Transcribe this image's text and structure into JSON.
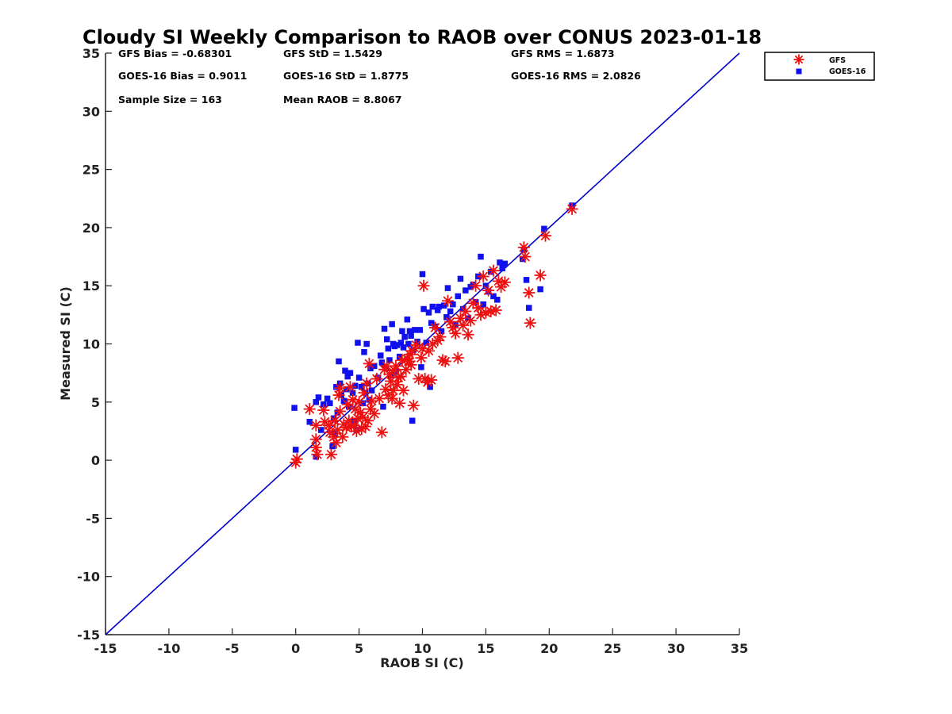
{
  "chart_data": {
    "type": "scatter",
    "title": "Cloudy SI Weekly Comparison to RAOB over CONUS 2023-01-18",
    "xlabel": "RAOB SI (C)",
    "ylabel": "Measured SI (C)",
    "xlim": [
      -15,
      35
    ],
    "ylim": [
      -15,
      35
    ],
    "xticks": [
      -15,
      -10,
      -5,
      0,
      5,
      10,
      15,
      20,
      25,
      30,
      35
    ],
    "yticks": [
      -15,
      -10,
      -5,
      0,
      5,
      10,
      15,
      20,
      25,
      30,
      35
    ],
    "grid": false,
    "legend_position": "top-right-outside",
    "reference_line": {
      "from": [
        -15,
        -15
      ],
      "to": [
        35,
        35
      ],
      "color": "#0000cc"
    },
    "stats": [
      "GFS Bias = -0.68301",
      "GFS StD = 1.5429",
      "GFS RMS = 1.6873",
      "GOES-16 Bias = 0.9011",
      "GOES-16 StD = 1.8775",
      "GOES-16 RMS = 2.0826",
      "Sample Size = 163",
      "Mean RAOB = 8.8067"
    ],
    "series": [
      {
        "name": "GFS",
        "marker": "asterisk",
        "color": "#ee1111",
        "points": [
          [
            0.0,
            -0.2
          ],
          [
            0.1,
            0.1
          ],
          [
            1.1,
            4.4
          ],
          [
            1.6,
            3.0
          ],
          [
            1.6,
            1.8
          ],
          [
            1.6,
            1.1
          ],
          [
            1.7,
            0.5
          ],
          [
            2.2,
            4.3
          ],
          [
            2.3,
            3.3
          ],
          [
            2.6,
            3.0
          ],
          [
            2.7,
            2.4
          ],
          [
            2.8,
            0.5
          ],
          [
            3.0,
            2.0
          ],
          [
            3.1,
            3.4
          ],
          [
            3.2,
            1.5
          ],
          [
            3.3,
            2.6
          ],
          [
            3.4,
            5.6
          ],
          [
            3.5,
            4.2
          ],
          [
            3.5,
            6.2
          ],
          [
            3.7,
            2.0
          ],
          [
            3.8,
            3.1
          ],
          [
            4.0,
            2.8
          ],
          [
            4.1,
            4.8
          ],
          [
            4.2,
            3.4
          ],
          [
            4.3,
            6.3
          ],
          [
            4.4,
            2.9
          ],
          [
            4.5,
            5.2
          ],
          [
            4.6,
            3.0
          ],
          [
            4.7,
            4.4
          ],
          [
            4.8,
            2.5
          ],
          [
            4.9,
            3.6
          ],
          [
            5.0,
            5.0
          ],
          [
            5.1,
            4.1
          ],
          [
            5.2,
            2.7
          ],
          [
            5.3,
            3.7
          ],
          [
            5.4,
            5.8
          ],
          [
            5.5,
            2.9
          ],
          [
            5.6,
            6.6
          ],
          [
            5.7,
            3.4
          ],
          [
            5.8,
            8.3
          ],
          [
            5.9,
            4.4
          ],
          [
            6.0,
            5.1
          ],
          [
            6.2,
            4.0
          ],
          [
            6.4,
            7.0
          ],
          [
            6.6,
            5.3
          ],
          [
            6.8,
            2.4
          ],
          [
            7.0,
            7.8
          ],
          [
            7.1,
            6.1
          ],
          [
            7.2,
            8.1
          ],
          [
            7.3,
            5.6
          ],
          [
            7.4,
            7.4
          ],
          [
            7.5,
            6.8
          ],
          [
            7.6,
            5.3
          ],
          [
            7.7,
            6.0
          ],
          [
            7.8,
            7.7
          ],
          [
            7.9,
            8.1
          ],
          [
            8.0,
            6.5
          ],
          [
            8.1,
            7.1
          ],
          [
            8.2,
            4.9
          ],
          [
            8.3,
            7.2
          ],
          [
            8.4,
            8.6
          ],
          [
            8.5,
            6.0
          ],
          [
            8.7,
            7.8
          ],
          [
            8.8,
            8.7
          ],
          [
            8.9,
            8.5
          ],
          [
            9.0,
            9.1
          ],
          [
            9.1,
            8.2
          ],
          [
            9.2,
            9.4
          ],
          [
            9.3,
            4.7
          ],
          [
            9.5,
            9.9
          ],
          [
            9.7,
            7.0
          ],
          [
            9.9,
            8.8
          ],
          [
            10.0,
            9.6
          ],
          [
            10.1,
            15.0
          ],
          [
            10.2,
            7.0
          ],
          [
            10.4,
            6.7
          ],
          [
            10.5,
            9.4
          ],
          [
            10.7,
            6.9
          ],
          [
            10.8,
            10.0
          ],
          [
            11.0,
            11.4
          ],
          [
            11.2,
            10.3
          ],
          [
            11.4,
            10.6
          ],
          [
            11.6,
            8.6
          ],
          [
            11.8,
            8.5
          ],
          [
            12.0,
            13.7
          ],
          [
            12.2,
            11.9
          ],
          [
            12.4,
            11.4
          ],
          [
            12.6,
            10.9
          ],
          [
            12.8,
            8.8
          ],
          [
            13.0,
            12.2
          ],
          [
            13.2,
            11.6
          ],
          [
            13.4,
            12.8
          ],
          [
            13.6,
            10.8
          ],
          [
            13.8,
            12.0
          ],
          [
            14.0,
            13.5
          ],
          [
            14.2,
            15.0
          ],
          [
            14.4,
            13.1
          ],
          [
            14.6,
            12.5
          ],
          [
            14.8,
            15.8
          ],
          [
            15.0,
            12.7
          ],
          [
            15.2,
            14.6
          ],
          [
            15.4,
            12.8
          ],
          [
            15.6,
            16.3
          ],
          [
            15.8,
            12.9
          ],
          [
            16.0,
            15.4
          ],
          [
            16.2,
            14.9
          ],
          [
            16.5,
            15.3
          ],
          [
            18.0,
            18.3
          ],
          [
            18.1,
            17.5
          ],
          [
            18.4,
            14.4
          ],
          [
            18.5,
            11.8
          ],
          [
            19.3,
            15.9
          ],
          [
            19.7,
            19.3
          ],
          [
            21.8,
            21.6
          ]
        ]
      },
      {
        "name": "GOES-16",
        "marker": "square",
        "color": "#1010ee",
        "points": [
          [
            -0.1,
            4.5
          ],
          [
            0.0,
            0.9
          ],
          [
            1.1,
            3.3
          ],
          [
            1.6,
            5.0
          ],
          [
            1.6,
            0.3
          ],
          [
            1.8,
            5.4
          ],
          [
            2.0,
            2.6
          ],
          [
            2.2,
            4.8
          ],
          [
            2.5,
            5.3
          ],
          [
            2.7,
            4.9
          ],
          [
            2.9,
            1.2
          ],
          [
            3.0,
            3.6
          ],
          [
            3.1,
            2.3
          ],
          [
            3.2,
            6.3
          ],
          [
            3.3,
            4.1
          ],
          [
            3.4,
            8.5
          ],
          [
            3.5,
            6.6
          ],
          [
            3.6,
            5.6
          ],
          [
            3.8,
            5.1
          ],
          [
            3.9,
            7.7
          ],
          [
            4.0,
            6.1
          ],
          [
            4.1,
            7.2
          ],
          [
            4.2,
            4.6
          ],
          [
            4.3,
            7.5
          ],
          [
            4.5,
            5.8
          ],
          [
            4.6,
            3.3
          ],
          [
            4.7,
            6.4
          ],
          [
            4.8,
            2.6
          ],
          [
            4.9,
            10.1
          ],
          [
            5.0,
            7.1
          ],
          [
            5.2,
            6.3
          ],
          [
            5.3,
            4.9
          ],
          [
            5.4,
            9.3
          ],
          [
            5.5,
            5.8
          ],
          [
            5.6,
            10.0
          ],
          [
            5.7,
            6.6
          ],
          [
            5.8,
            5.2
          ],
          [
            5.9,
            7.9
          ],
          [
            6.0,
            6.0
          ],
          [
            6.2,
            8.1
          ],
          [
            6.5,
            7.1
          ],
          [
            6.7,
            9.0
          ],
          [
            6.8,
            8.4
          ],
          [
            6.9,
            4.6
          ],
          [
            7.0,
            11.3
          ],
          [
            7.1,
            7.9
          ],
          [
            7.2,
            10.4
          ],
          [
            7.3,
            9.6
          ],
          [
            7.4,
            8.6
          ],
          [
            7.5,
            7.3
          ],
          [
            7.6,
            11.7
          ],
          [
            7.7,
            10.0
          ],
          [
            7.8,
            9.8
          ],
          [
            7.9,
            7.6
          ],
          [
            8.0,
            9.9
          ],
          [
            8.2,
            8.9
          ],
          [
            8.3,
            10.1
          ],
          [
            8.4,
            11.1
          ],
          [
            8.5,
            9.7
          ],
          [
            8.6,
            10.6
          ],
          [
            8.8,
            12.1
          ],
          [
            8.9,
            10.0
          ],
          [
            9.0,
            11.1
          ],
          [
            9.1,
            10.7
          ],
          [
            9.2,
            3.4
          ],
          [
            9.3,
            9.5
          ],
          [
            9.4,
            11.2
          ],
          [
            9.6,
            10.2
          ],
          [
            9.8,
            11.2
          ],
          [
            9.9,
            8.0
          ],
          [
            10.0,
            16.0
          ],
          [
            10.1,
            13.0
          ],
          [
            10.3,
            10.1
          ],
          [
            10.5,
            12.7
          ],
          [
            10.6,
            6.3
          ],
          [
            10.7,
            11.8
          ],
          [
            10.8,
            13.2
          ],
          [
            11.0,
            11.5
          ],
          [
            11.2,
            12.9
          ],
          [
            11.3,
            13.2
          ],
          [
            11.5,
            11.1
          ],
          [
            11.7,
            13.3
          ],
          [
            11.9,
            12.3
          ],
          [
            12.0,
            14.8
          ],
          [
            12.2,
            12.8
          ],
          [
            12.4,
            13.4
          ],
          [
            12.6,
            11.7
          ],
          [
            12.8,
            14.1
          ],
          [
            13.0,
            15.6
          ],
          [
            13.2,
            13.0
          ],
          [
            13.4,
            14.6
          ],
          [
            13.6,
            12.2
          ],
          [
            13.8,
            14.9
          ],
          [
            14.0,
            15.1
          ],
          [
            14.2,
            13.6
          ],
          [
            14.4,
            15.8
          ],
          [
            14.6,
            17.5
          ],
          [
            14.8,
            13.4
          ],
          [
            15.0,
            15.0
          ],
          [
            15.2,
            14.5
          ],
          [
            15.4,
            16.2
          ],
          [
            15.6,
            14.1
          ],
          [
            15.9,
            13.8
          ],
          [
            16.1,
            17.0
          ],
          [
            16.3,
            16.5
          ],
          [
            16.5,
            16.9
          ],
          [
            17.9,
            17.3
          ],
          [
            18.0,
            18.1
          ],
          [
            18.2,
            15.5
          ],
          [
            18.4,
            13.1
          ],
          [
            19.3,
            14.7
          ],
          [
            19.6,
            19.9
          ],
          [
            21.8,
            21.9
          ]
        ]
      }
    ]
  }
}
